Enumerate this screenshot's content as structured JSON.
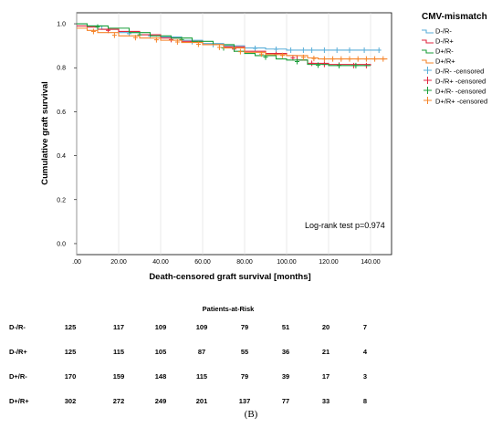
{
  "chart_data": {
    "type": "line",
    "xlabel": "Death-censored graft survival [months]",
    "ylabel": "Cumulative graft survival",
    "xlim": [
      0,
      150
    ],
    "ylim": [
      -0.05,
      1.05
    ],
    "x_ticks": [
      ".00",
      "20.00",
      "40.00",
      "60.00",
      "80.00",
      "100.00",
      "120.00",
      "140.00"
    ],
    "x_tick_values": [
      0,
      20,
      40,
      60,
      80,
      100,
      120,
      140
    ],
    "y_ticks": [
      "0.0",
      "0.2",
      "0.4",
      "0.6",
      "0.8",
      "1.0"
    ],
    "y_tick_values": [
      0,
      0.2,
      0.4,
      0.6,
      0.8,
      1.0
    ],
    "legend_title": "CMV-mismatch",
    "legend_placement": "right",
    "series": [
      {
        "name": "D-/R-",
        "color": "#5aaed8",
        "points": [
          [
            0,
            1.0
          ],
          [
            5,
            0.99
          ],
          [
            12,
            0.975
          ],
          [
            20,
            0.96
          ],
          [
            30,
            0.95
          ],
          [
            40,
            0.94
          ],
          [
            50,
            0.925
          ],
          [
            60,
            0.91
          ],
          [
            70,
            0.9
          ],
          [
            80,
            0.89
          ],
          [
            90,
            0.885
          ],
          [
            100,
            0.88
          ],
          [
            145,
            0.88
          ]
        ],
        "censored": [
          [
            25,
            0.955
          ],
          [
            35,
            0.945
          ],
          [
            55,
            0.918
          ],
          [
            65,
            0.905
          ],
          [
            85,
            0.888
          ],
          [
            95,
            0.884
          ],
          [
            102,
            0.88
          ],
          [
            108,
            0.88
          ],
          [
            112,
            0.88
          ],
          [
            118,
            0.88
          ],
          [
            124,
            0.88
          ],
          [
            130,
            0.88
          ],
          [
            137,
            0.88
          ],
          [
            144,
            0.88
          ]
        ]
      },
      {
        "name": "D-/R+",
        "color": "#e0273f",
        "points": [
          [
            0,
            0.99
          ],
          [
            5,
            0.985
          ],
          [
            10,
            0.975
          ],
          [
            20,
            0.965
          ],
          [
            30,
            0.95
          ],
          [
            40,
            0.935
          ],
          [
            50,
            0.92
          ],
          [
            60,
            0.905
          ],
          [
            70,
            0.895
          ],
          [
            80,
            0.875
          ],
          [
            90,
            0.865
          ],
          [
            100,
            0.855
          ],
          [
            105,
            0.835
          ],
          [
            110,
            0.82
          ],
          [
            120,
            0.815
          ],
          [
            140,
            0.81
          ]
        ],
        "censored": [
          [
            15,
            0.97
          ],
          [
            45,
            0.928
          ],
          [
            75,
            0.885
          ],
          [
            95,
            0.86
          ],
          [
            103,
            0.845
          ],
          [
            112,
            0.82
          ],
          [
            118,
            0.815
          ],
          [
            125,
            0.812
          ],
          [
            132,
            0.81
          ],
          [
            138,
            0.81
          ]
        ]
      },
      {
        "name": "D+/R-",
        "color": "#1a9e3a",
        "points": [
          [
            0,
            1.0
          ],
          [
            5,
            0.99
          ],
          [
            15,
            0.98
          ],
          [
            25,
            0.96
          ],
          [
            35,
            0.945
          ],
          [
            45,
            0.935
          ],
          [
            55,
            0.92
          ],
          [
            65,
            0.905
          ],
          [
            75,
            0.875
          ],
          [
            80,
            0.865
          ],
          [
            85,
            0.855
          ],
          [
            95,
            0.84
          ],
          [
            100,
            0.835
          ],
          [
            110,
            0.815
          ],
          [
            120,
            0.81
          ],
          [
            140,
            0.81
          ]
        ],
        "censored": [
          [
            10,
            0.985
          ],
          [
            30,
            0.95
          ],
          [
            50,
            0.928
          ],
          [
            70,
            0.89
          ],
          [
            90,
            0.848
          ],
          [
            105,
            0.828
          ],
          [
            115,
            0.812
          ],
          [
            125,
            0.81
          ],
          [
            133,
            0.81
          ]
        ]
      },
      {
        "name": "D+/R+",
        "color": "#f5842a",
        "points": [
          [
            0,
            0.98
          ],
          [
            5,
            0.97
          ],
          [
            10,
            0.96
          ],
          [
            20,
            0.945
          ],
          [
            30,
            0.935
          ],
          [
            40,
            0.925
          ],
          [
            50,
            0.915
          ],
          [
            60,
            0.905
          ],
          [
            70,
            0.89
          ],
          [
            80,
            0.87
          ],
          [
            90,
            0.86
          ],
          [
            100,
            0.855
          ],
          [
            110,
            0.845
          ],
          [
            115,
            0.84
          ],
          [
            148,
            0.84
          ]
        ],
        "censored": [
          [
            8,
            0.965
          ],
          [
            18,
            0.948
          ],
          [
            28,
            0.937
          ],
          [
            38,
            0.927
          ],
          [
            48,
            0.917
          ],
          [
            58,
            0.907
          ],
          [
            68,
            0.893
          ],
          [
            78,
            0.873
          ],
          [
            88,
            0.862
          ],
          [
            98,
            0.856
          ],
          [
            108,
            0.847
          ],
          [
            113,
            0.842
          ],
          [
            118,
            0.84
          ],
          [
            122,
            0.84
          ],
          [
            126,
            0.84
          ],
          [
            130,
            0.84
          ],
          [
            134,
            0.84
          ],
          [
            138,
            0.84
          ],
          [
            142,
            0.84
          ],
          [
            146,
            0.84
          ]
        ]
      }
    ],
    "legend_entries": [
      "D-/R-",
      "D-/R+",
      "D+/R-",
      "D+/R+",
      "D-/R- -censored",
      "D-/R+ -censored",
      "D+/R- -censored",
      "D+/R+ -censored"
    ],
    "annotation": "Log-rank test p=0.974"
  },
  "risk_table": {
    "title": "Patients-at-Risk",
    "rows": [
      {
        "label": "D-/R-",
        "values": [
          "125",
          "117",
          "109",
          "109",
          "79",
          "51",
          "20",
          "7"
        ]
      },
      {
        "label": "D-/R+",
        "values": [
          "125",
          "115",
          "105",
          "87",
          "55",
          "36",
          "21",
          "4"
        ]
      },
      {
        "label": "D+/R-",
        "values": [
          "170",
          "159",
          "148",
          "115",
          "79",
          "39",
          "17",
          "3"
        ]
      },
      {
        "label": "D+/R+",
        "values": [
          "302",
          "272",
          "249",
          "201",
          "137",
          "77",
          "33",
          "8"
        ]
      }
    ]
  },
  "caption": "(B)"
}
